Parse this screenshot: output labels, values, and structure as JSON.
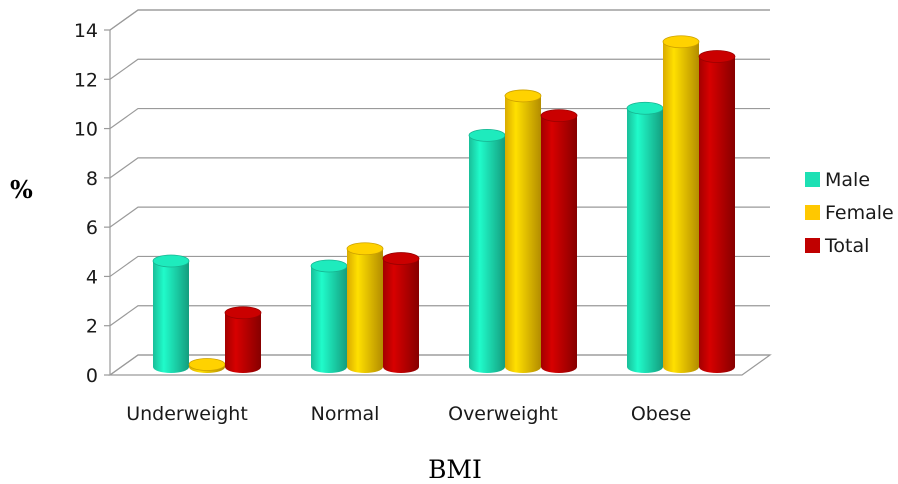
{
  "chart_data": {
    "type": "bar",
    "xlabel": "BMI",
    "ylabel": "%",
    "ylim": [
      0,
      14
    ],
    "yticks": [
      0,
      2,
      4,
      6,
      8,
      10,
      12,
      14
    ],
    "categories": [
      "Underweight",
      "Normal",
      "Overweight",
      "Obese"
    ],
    "series": [
      {
        "name": "Male",
        "color": "#1de0b4",
        "values": [
          4.3,
          4.1,
          9.4,
          10.5
        ]
      },
      {
        "name": "Female",
        "color": "#ffc800",
        "values": [
          0.1,
          4.8,
          11.0,
          13.2
        ]
      },
      {
        "name": "Total",
        "color": "#c00000",
        "values": [
          2.2,
          4.4,
          10.2,
          12.6
        ]
      }
    ],
    "grid": true,
    "legend_position": "right",
    "style": "3d-cylinder"
  }
}
